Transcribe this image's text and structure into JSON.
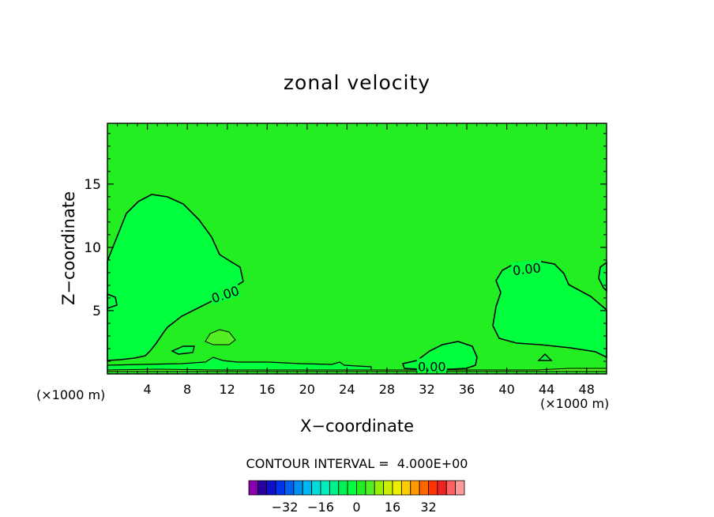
{
  "chart_data": {
    "type": "contour",
    "title": "zonal velocity",
    "xlabel": "X−coordinate",
    "ylabel": "Z−coordinate",
    "x_unit_left": "(×1000 m)",
    "x_unit_right": "(×1000 m)",
    "xlim": [
      0,
      50
    ],
    "ylim": [
      0,
      19.8
    ],
    "x_ticks": [
      4,
      8,
      12,
      16,
      20,
      24,
      28,
      32,
      36,
      40,
      44,
      48
    ],
    "y_ticks": [
      5,
      10,
      15
    ],
    "contour_labels": [
      {
        "text": "0.00",
        "x": 11.8,
        "y": 6.3,
        "angle": -18
      },
      {
        "text": "0.00",
        "x": 42.0,
        "y": 8.3,
        "angle": -6
      },
      {
        "text": "0.00",
        "x": 32.5,
        "y": 0.6,
        "angle": 0
      }
    ],
    "field_colors": {
      "background": "#22ee22",
      "zero_region": "#00ff3c",
      "positive_patch": "#55ee22"
    },
    "contour_interval_label": "CONTOUR INTERVAL =  4.000E+00",
    "colorbar": {
      "colors": [
        "#8800aa",
        "#2a00a0",
        "#1010cc",
        "#0033ee",
        "#0060f0",
        "#0090f0",
        "#00b8f0",
        "#00dcdc",
        "#00eebb",
        "#00f08a",
        "#00f055",
        "#00ff3c",
        "#22ee22",
        "#55ee22",
        "#99ee00",
        "#ccee00",
        "#eeee00",
        "#ffcc00",
        "#ff9900",
        "#ff6600",
        "#ff3300",
        "#ee2222",
        "#ff6060",
        "#ff9999"
      ],
      "tick_labels": [
        "−32",
        "−16",
        "0",
        "16",
        "32"
      ],
      "tick_values": [
        -32,
        -16,
        0,
        16,
        32
      ],
      "vmin": -48,
      "vmax": 48
    }
  }
}
